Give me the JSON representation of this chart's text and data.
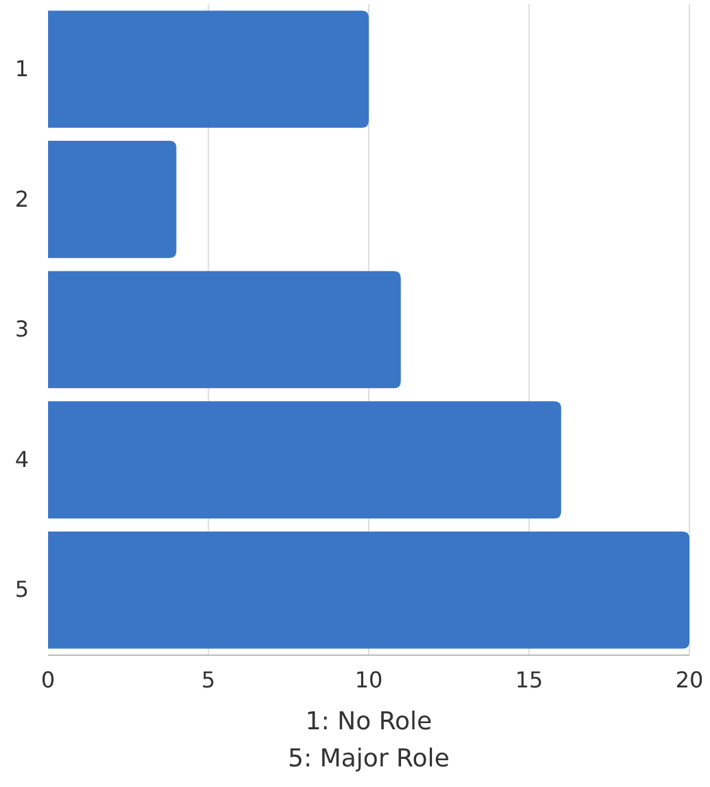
{
  "chart_data": {
    "type": "bar",
    "orientation": "horizontal",
    "categories": [
      "1",
      "2",
      "3",
      "4",
      "5"
    ],
    "values": [
      10,
      4,
      11,
      16,
      20
    ],
    "color": "#3b76c6",
    "xlim": [
      0,
      20
    ],
    "xticks": [
      0,
      5,
      10,
      15,
      20
    ],
    "grid": "x",
    "xlabel": "1: No Role\n5: Major Role"
  }
}
